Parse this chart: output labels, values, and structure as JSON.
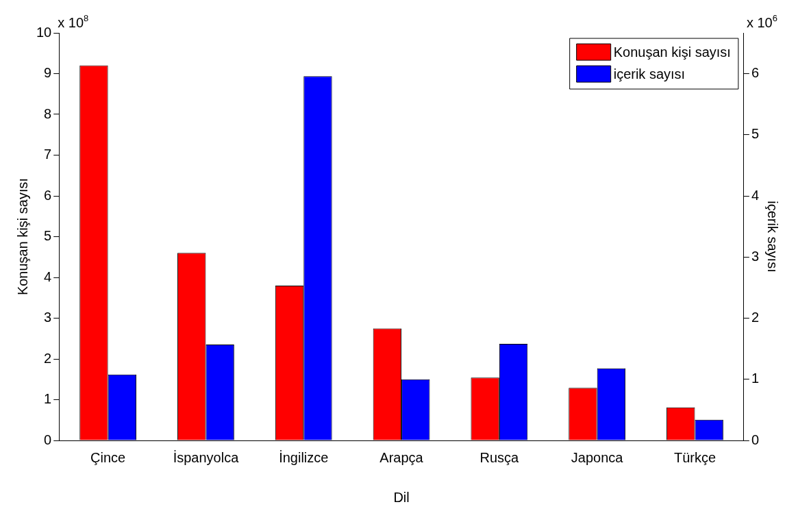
{
  "chart_data": {
    "type": "bar",
    "xlabel": "Dil",
    "ylabel": "Konuşan kişi sayısı",
    "y2label": "içerik sayısı",
    "categories": [
      "Çince",
      "İspanyolca",
      "İngilizce",
      "Arapça",
      "Rusça",
      "Japonca",
      "Türkçe"
    ],
    "series": [
      {
        "name": "Konuşan kişi sayısı",
        "color": "#ff0000",
        "values": [
          9.2,
          4.6,
          3.8,
          2.75,
          1.54,
          1.29,
          0.81
        ]
      },
      {
        "name": "içerik sayısı",
        "color": "#0000ff",
        "axis": "y2",
        "values": [
          1.08,
          1.57,
          5.96,
          1.0,
          1.58,
          1.18,
          0.34
        ]
      }
    ],
    "ylim": [
      0,
      10
    ],
    "yticks": [
      0,
      1,
      2,
      3,
      4,
      5,
      6,
      7,
      8,
      9,
      10
    ],
    "y2lim": [
      0,
      6.67
    ],
    "y2ticks": [
      0,
      1,
      2,
      3,
      4,
      5,
      6
    ],
    "annotations": [
      "x 10$^{8}$",
      "x 10$^{6}$"
    ],
    "grid": false,
    "legend": "top right"
  }
}
